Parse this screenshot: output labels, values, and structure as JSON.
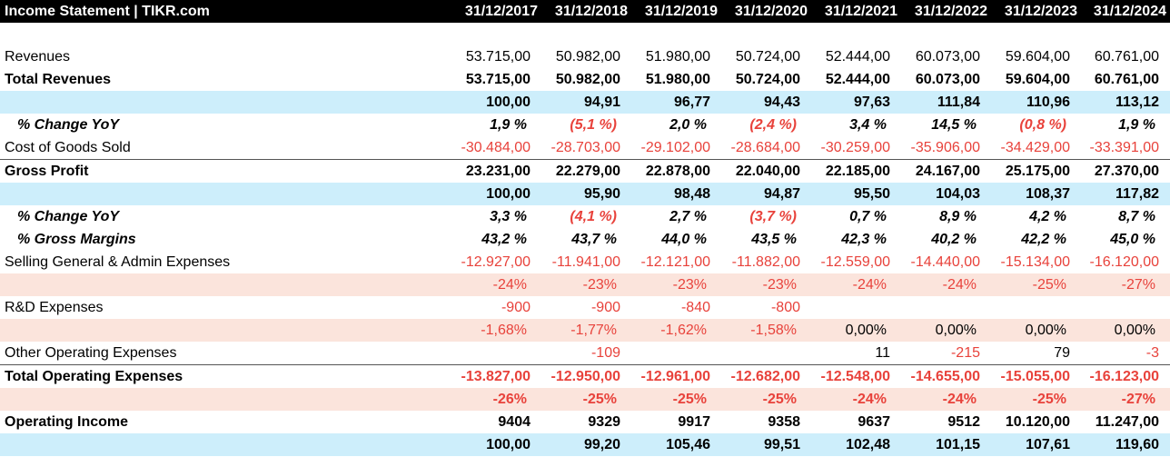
{
  "header": {
    "title": "Income Statement | TIKR.com",
    "years": [
      "31/12/2017",
      "31/12/2018",
      "31/12/2019",
      "31/12/2020",
      "31/12/2021",
      "31/12/2022",
      "31/12/2023",
      "31/12/2024"
    ]
  },
  "rows": [
    {
      "label": "",
      "type": "blank",
      "values": [
        "",
        "",
        "",
        "",
        "",
        "",
        "",
        ""
      ]
    },
    {
      "label": "Revenues",
      "type": "plain",
      "values": [
        "53.715,00",
        "50.982,00",
        "51.980,00",
        "50.724,00",
        "52.444,00",
        "60.073,00",
        "59.604,00",
        "60.761,00"
      ]
    },
    {
      "label": "Total Revenues",
      "type": "bold",
      "values": [
        "53.715,00",
        "50.982,00",
        "51.980,00",
        "50.724,00",
        "52.444,00",
        "60.073,00",
        "59.604,00",
        "60.761,00"
      ]
    },
    {
      "label": "",
      "type": "idx",
      "values": [
        "100,00",
        "94,91",
        "96,77",
        "94,43",
        "97,63",
        "111,84",
        "110,96",
        "113,12"
      ]
    },
    {
      "label": "% Change YoY",
      "type": "italic",
      "values": [
        "1,9 %",
        "(5,1 %)",
        "2,0 %",
        "(2,4 %)",
        "3,4 %",
        "14,5 %",
        "(0,8 %)",
        "1,9 %"
      ]
    },
    {
      "label": "Cost of Goods Sold",
      "type": "plain",
      "values": [
        "-30.484,00",
        "-28.703,00",
        "-29.102,00",
        "-28.684,00",
        "-30.259,00",
        "-35.906,00",
        "-34.429,00",
        "-33.391,00"
      ]
    },
    {
      "label": "Gross Profit",
      "type": "bold sep",
      "values": [
        "23.231,00",
        "22.279,00",
        "22.878,00",
        "22.040,00",
        "22.185,00",
        "24.167,00",
        "25.175,00",
        "27.370,00"
      ]
    },
    {
      "label": "",
      "type": "idx",
      "values": [
        "100,00",
        "95,90",
        "98,48",
        "94,87",
        "95,50",
        "104,03",
        "108,37",
        "117,82"
      ]
    },
    {
      "label": "% Change YoY",
      "type": "italic",
      "values": [
        "3,3 %",
        "(4,1 %)",
        "2,7 %",
        "(3,7 %)",
        "0,7 %",
        "8,9 %",
        "4,2 %",
        "8,7 %"
      ]
    },
    {
      "label": "% Gross Margins",
      "type": "italic",
      "values": [
        "43,2 %",
        "43,7 %",
        "44,0 %",
        "43,5 %",
        "42,3 %",
        "40,2 %",
        "42,2 %",
        "45,0 %"
      ]
    },
    {
      "label": "Selling General & Admin Expenses",
      "type": "plain",
      "values": [
        "-12.927,00",
        "-11.941,00",
        "-12.121,00",
        "-11.882,00",
        "-12.559,00",
        "-14.440,00",
        "-15.134,00",
        "-16.120,00"
      ]
    },
    {
      "label": "",
      "type": "share",
      "values": [
        "-24%",
        "-23%",
        "-23%",
        "-23%",
        "-24%",
        "-24%",
        "-25%",
        "-27%"
      ]
    },
    {
      "label": "R&D Expenses",
      "type": "plain",
      "values": [
        "-900",
        "-900",
        "-840",
        "-800",
        "",
        "",
        "",
        ""
      ]
    },
    {
      "label": "",
      "type": "share",
      "values": [
        "-1,68%",
        "-1,77%",
        "-1,62%",
        "-1,58%",
        "0,00%",
        "0,00%",
        "0,00%",
        "0,00%"
      ]
    },
    {
      "label": "Other Operating Expenses",
      "type": "plain",
      "values": [
        "",
        "-109",
        "",
        "",
        "11",
        "-215",
        "79",
        "-3"
      ]
    },
    {
      "label": "Total Operating Expenses",
      "type": "bold sep",
      "values": [
        "-13.827,00",
        "-12.950,00",
        "-12.961,00",
        "-12.682,00",
        "-12.548,00",
        "-14.655,00",
        "-15.055,00",
        "-16.123,00"
      ]
    },
    {
      "label": "",
      "type": "share bold",
      "values": [
        "-26%",
        "-25%",
        "-25%",
        "-25%",
        "-24%",
        "-24%",
        "-25%",
        "-27%"
      ]
    },
    {
      "label": "Operating Income",
      "type": "bold",
      "values": [
        "9404",
        "9329",
        "9917",
        "9358",
        "9637",
        "9512",
        "10.120,00",
        "11.247,00"
      ]
    },
    {
      "label": "",
      "type": "idx",
      "values": [
        "100,00",
        "99,20",
        "105,46",
        "99,51",
        "102,48",
        "101,15",
        "107,61",
        "119,60"
      ]
    }
  ]
}
